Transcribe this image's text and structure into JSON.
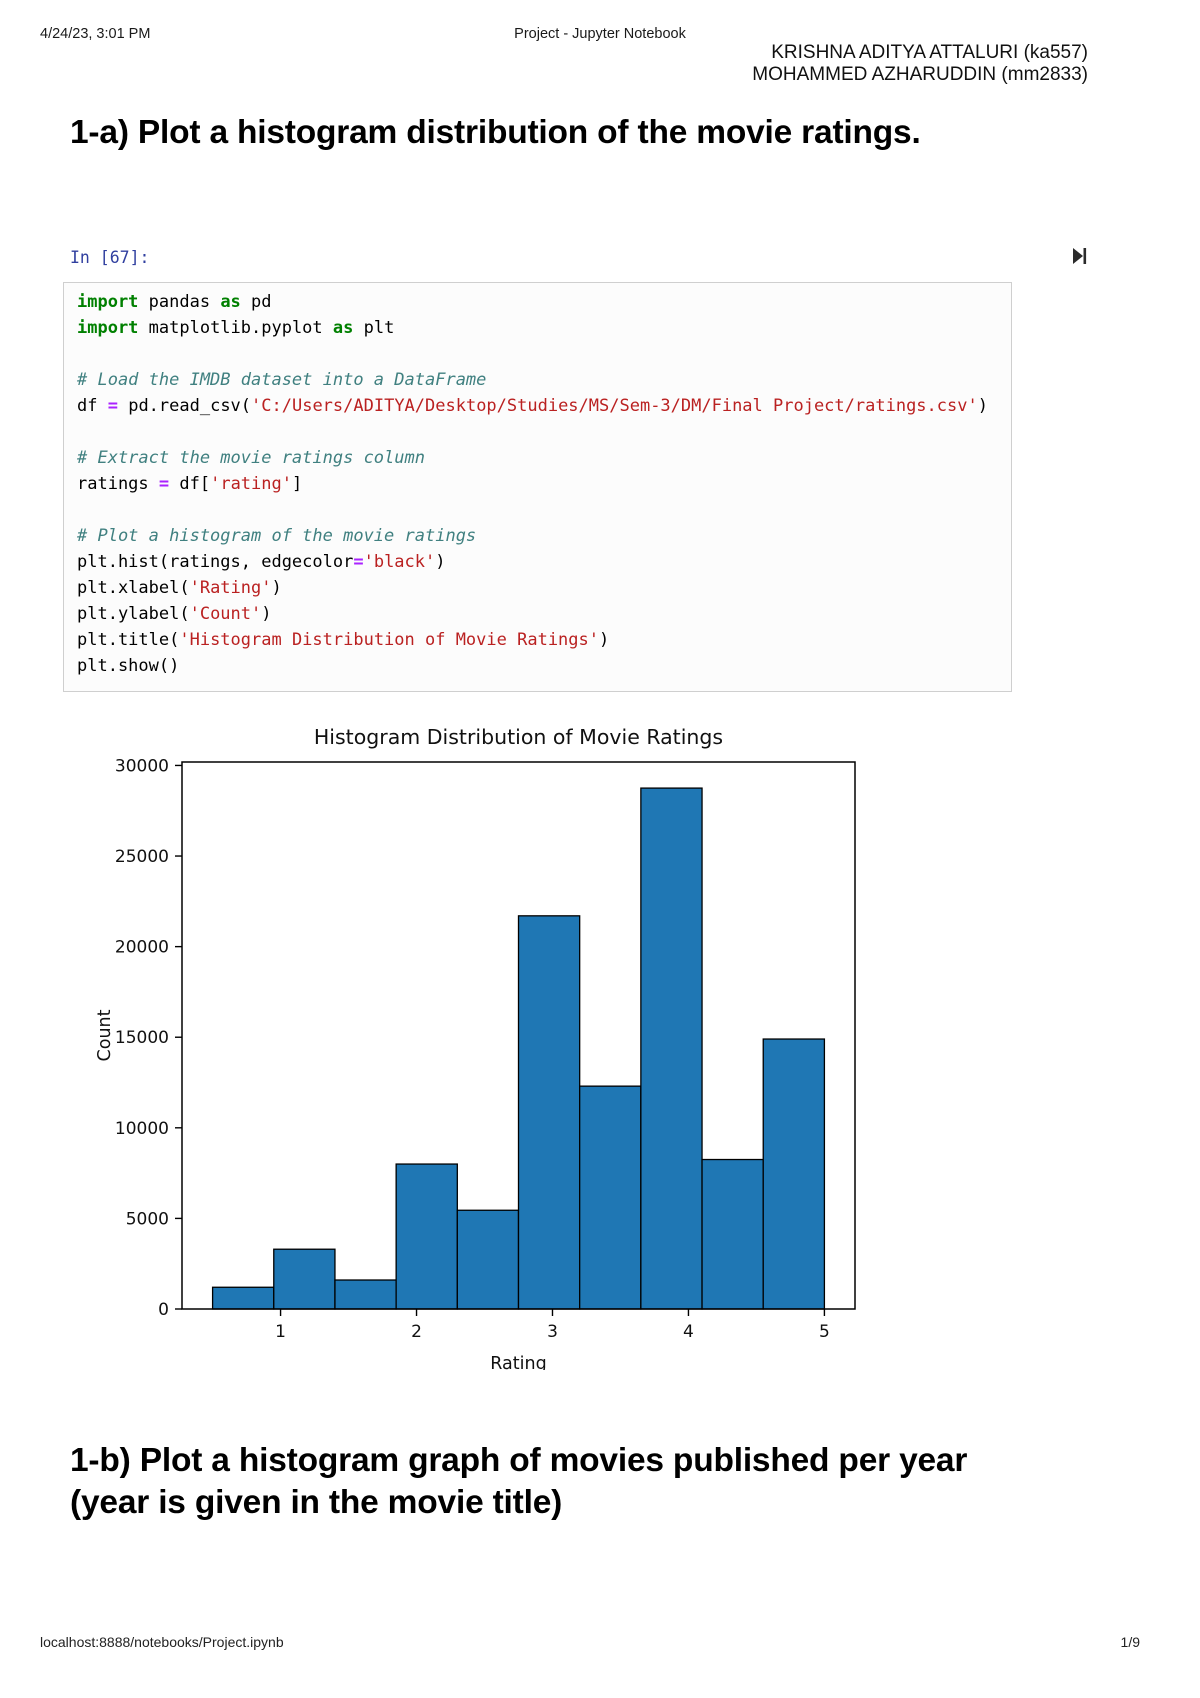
{
  "header": {
    "datetime": "4/24/23, 3:01 PM",
    "doc_title": "Project - Jupyter Notebook",
    "authors": [
      "KRISHNA ADITYA ATTALURI (ka557)",
      "MOHAMMED AZHARUDDIN (mm2833)"
    ]
  },
  "sections": {
    "q1a_heading": "1-a) Plot a histogram distribution of the movie ratings.",
    "q1b_heading": "1-b) Plot a histogram graph of movies published per year (year is given in the movie title)"
  },
  "cell": {
    "prompt": "In [67]:",
    "run_icon": "skip-to-end-icon",
    "code_lines": [
      [
        [
          "import",
          "kw"
        ],
        [
          " pandas ",
          "txt"
        ],
        [
          "as",
          "kw"
        ],
        [
          " pd",
          "txt"
        ]
      ],
      [
        [
          "import",
          "kw"
        ],
        [
          " matplotlib.pyplot ",
          "txt"
        ],
        [
          "as",
          "kw"
        ],
        [
          " plt",
          "txt"
        ]
      ],
      [],
      [
        [
          "# Load the IMDB dataset into a DataFrame",
          "com"
        ]
      ],
      [
        [
          "df ",
          "txt"
        ],
        [
          "=",
          "op"
        ],
        [
          " pd.read_csv(",
          "txt"
        ],
        [
          "'C:/Users/ADITYA/Desktop/Studies/MS/Sem-3/DM/Final Project/ratings.csv'",
          "str"
        ],
        [
          ")",
          "txt"
        ]
      ],
      [],
      [
        [
          "# Extract the movie ratings column",
          "com"
        ]
      ],
      [
        [
          "ratings ",
          "txt"
        ],
        [
          "=",
          "op"
        ],
        [
          " df[",
          "txt"
        ],
        [
          "'rating'",
          "str"
        ],
        [
          "]",
          "txt"
        ]
      ],
      [],
      [
        [
          "# Plot a histogram of the movie ratings",
          "com"
        ]
      ],
      [
        [
          "plt.hist(ratings, edgecolor",
          "txt"
        ],
        [
          "=",
          "op"
        ],
        [
          "'black'",
          "str"
        ],
        [
          ")",
          "txt"
        ]
      ],
      [
        [
          "plt.xlabel(",
          "txt"
        ],
        [
          "'Rating'",
          "str"
        ],
        [
          ")",
          "txt"
        ]
      ],
      [
        [
          "plt.ylabel(",
          "txt"
        ],
        [
          "'Count'",
          "str"
        ],
        [
          ")",
          "txt"
        ]
      ],
      [
        [
          "plt.title(",
          "txt"
        ],
        [
          "'Histogram Distribution of Movie Ratings'",
          "str"
        ],
        [
          ")",
          "txt"
        ]
      ],
      [
        [
          "plt.show()",
          "txt"
        ]
      ]
    ]
  },
  "chart_data": {
    "type": "bar",
    "subtype": "histogram",
    "title": "Histogram Distribution of Movie Ratings",
    "xlabel": "Rating",
    "ylabel": "Count",
    "bin_edges": [
      0.5,
      0.95,
      1.4,
      1.85,
      2.3,
      2.75,
      3.2,
      3.65,
      4.1,
      4.55,
      5.0
    ],
    "values": [
      1200,
      3300,
      1600,
      8000,
      5450,
      21700,
      12300,
      28750,
      8250,
      14900
    ],
    "xticks": [
      1,
      2,
      3,
      4,
      5
    ],
    "yticks": [
      0,
      5000,
      10000,
      15000,
      20000,
      25000,
      30000
    ],
    "xlim": [
      0.275,
      5.225
    ],
    "ylim": [
      0,
      30190
    ],
    "grid": false,
    "legend": null,
    "bar_color": "#1f77b4",
    "bar_edge_color": "#000000"
  },
  "footer": {
    "url": "localhost:8888/notebooks/Project.ipynb",
    "page_number": "1/9"
  },
  "colors": {
    "prompt_blue": "#303F9F",
    "keyword_green": "#008000",
    "comment_teal": "#408080",
    "string_red": "#BA2121",
    "operator_purple": "#AA22FF",
    "cell_border": "#cfcfcf"
  }
}
